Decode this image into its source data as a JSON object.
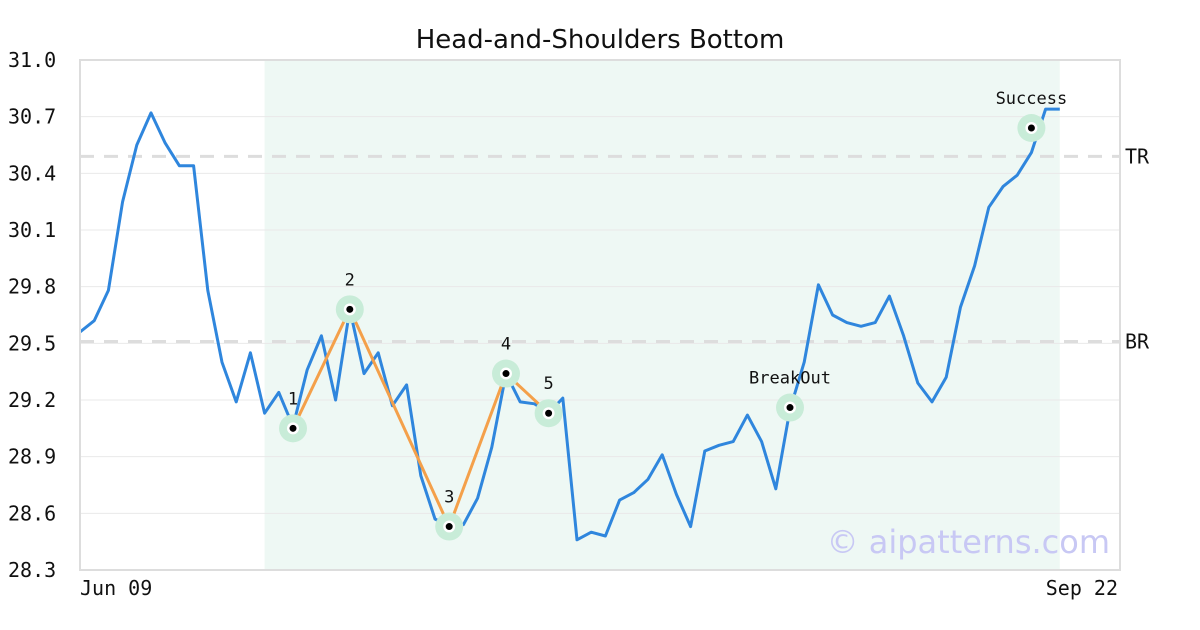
{
  "chart_data": {
    "type": "line",
    "title": "Head-and-Shoulders Bottom",
    "xlabel": "",
    "ylabel": "",
    "ylim": [
      28.3,
      31.0
    ],
    "y_ticks": [
      "31.0",
      "30.7",
      "30.4",
      "30.1",
      "29.8",
      "29.5",
      "29.2",
      "28.9",
      "28.6",
      "28.3"
    ],
    "x_tick_labels": [
      "Jun 09",
      "Sep 22"
    ],
    "grid": true,
    "colors": {
      "price": "#2f86dd",
      "pattern": "#f4a04a",
      "highlight": "#c8ecd8",
      "region": "#eef8f4",
      "levels": "#dddddd",
      "marker": "#000000"
    },
    "price": [
      29.56,
      29.62,
      29.78,
      30.25,
      30.55,
      30.72,
      30.56,
      30.44,
      30.44,
      29.78,
      29.4,
      29.19,
      29.45,
      29.13,
      29.24,
      29.06,
      29.36,
      29.54,
      29.2,
      29.68,
      29.34,
      29.45,
      29.17,
      29.28,
      28.8,
      28.57,
      28.53,
      28.54,
      28.68,
      28.95,
      29.34,
      29.19,
      29.18,
      29.13,
      29.21,
      28.46,
      28.5,
      28.48,
      28.67,
      28.71,
      28.78,
      28.91,
      28.7,
      28.53,
      28.93,
      28.96,
      28.98,
      29.12,
      28.98,
      28.73,
      29.15,
      29.4,
      29.81,
      29.65,
      29.61,
      29.59,
      29.61,
      29.75,
      29.54,
      29.29,
      29.19,
      29.32,
      29.69,
      29.91,
      30.22,
      30.33,
      30.39,
      30.51,
      30.74,
      30.74
    ],
    "pattern_region": {
      "start_index": 13,
      "end_index": 69
    },
    "pattern_points": [
      {
        "label": "1",
        "index": 15,
        "value": 29.05
      },
      {
        "label": "2",
        "index": 19,
        "value": 29.68
      },
      {
        "label": "3",
        "index": 26,
        "value": 28.53
      },
      {
        "label": "4",
        "index": 30,
        "value": 29.34
      },
      {
        "label": "5",
        "index": 33,
        "value": 29.13
      }
    ],
    "events": [
      {
        "label": "BreakOut",
        "index": 50,
        "value": 29.16
      },
      {
        "label": "Success",
        "index": 67,
        "value": 30.64
      }
    ],
    "levels": [
      {
        "label": "TR",
        "value": 30.49
      },
      {
        "label": "BR",
        "value": 29.51
      }
    ]
  },
  "watermark": "© aipatterns.com"
}
